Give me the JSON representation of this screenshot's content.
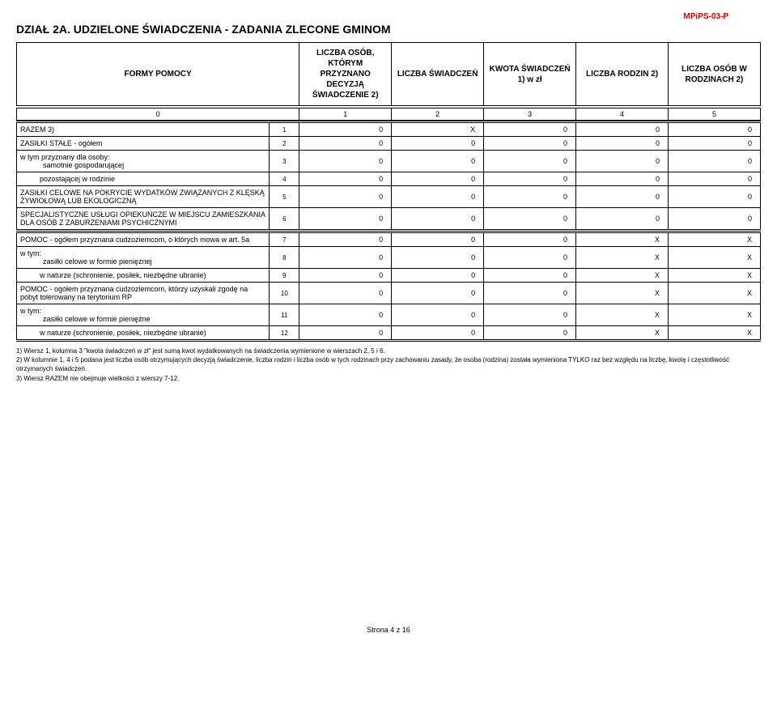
{
  "doc_id": "MPiPS-03-P",
  "section_title": "DZIAŁ 2A. UDZIELONE ŚWIADCZENIA - ZADANIA ZLECONE GMINOM",
  "header": {
    "col0": "FORMY POMOCY",
    "col1": "LICZBA OSÓB, KTÓRYM PRZYZNANO DECYZJĄ ŚWIADCZENIE 2)",
    "col2": "LICZBA ŚWIADCZEŃ",
    "col3": "KWOTA ŚWIADCZEŃ 1) w zł",
    "col4": "LICZBA RODZIN 2)",
    "col5": "LICZBA OSÓB W RODZINACH 2)"
  },
  "numrow": [
    "0",
    "1",
    "2",
    "3",
    "4",
    "5"
  ],
  "block1": [
    {
      "label": "RAZEM 3)",
      "n": "1",
      "v": [
        "0",
        "X",
        "0",
        "0",
        "0"
      ],
      "cls": ""
    },
    {
      "label": "ZASIŁKI STAŁE - ogółem",
      "n": "2",
      "v": [
        "0",
        "0",
        "0",
        "0",
        "0"
      ],
      "cls": ""
    },
    {
      "label": "w tym przyznany dla osoby:",
      "sublabel": "samotnie gospodarującej",
      "n": "3",
      "v": [
        "0",
        "0",
        "0",
        "0",
        "0"
      ],
      "cls": ""
    },
    {
      "label": "pozostającej w rodzinie",
      "n": "4",
      "v": [
        "0",
        "0",
        "0",
        "0",
        "0"
      ],
      "cls": "indent2"
    },
    {
      "label": "ZASIŁKI CELOWE NA POKRYCIE WYDATKÓW ZWIĄZANYCH Z KLĘSKĄ ŻYWIOŁOWĄ LUB EKOLOGICZNĄ",
      "n": "5",
      "v": [
        "0",
        "0",
        "0",
        "0",
        "0"
      ],
      "cls": ""
    },
    {
      "label": "SPECJALISTYCZNE USŁUGI OPIEKUŃCZE W MIEJSCU ZAMIESZKANIA DLA OSÓB Z ZABURZENIAMI PSYCHICZNYMI",
      "n": "6",
      "v": [
        "0",
        "0",
        "0",
        "0",
        "0"
      ],
      "cls": ""
    }
  ],
  "block2": [
    {
      "label": "POMOC - ogółem przyznana cudzoziemcom, o których mowa w art. 5a",
      "n": "7",
      "v": [
        "0",
        "0",
        "0",
        "X",
        "X"
      ],
      "cls": ""
    },
    {
      "label": "w tym:",
      "sublabel": "zasiłki celowe w formie pieniężnej",
      "n": "8",
      "v": [
        "0",
        "0",
        "0",
        "X",
        "X"
      ],
      "cls": ""
    },
    {
      "label": "w naturze (schronienie, posiłek, niezbędne ubranie)",
      "n": "9",
      "v": [
        "0",
        "0",
        "0",
        "X",
        "X"
      ],
      "cls": "indent2"
    },
    {
      "label": "POMOC - ogółem przyznana cudzoziemcom, którzy uzyskali zgodę na pobyt tolerowany na terytorium RP",
      "n": "10",
      "v": [
        "0",
        "0",
        "0",
        "X",
        "X"
      ],
      "cls": ""
    },
    {
      "label": "w tym:",
      "sublabel": "zasiłki celowe w formie pieniężne",
      "n": "11",
      "v": [
        "0",
        "0",
        "0",
        "X",
        "X"
      ],
      "cls": ""
    },
    {
      "label": "w naturze (schronienie, posiłek, niezbędne ubranie)",
      "n": "12",
      "v": [
        "0",
        "0",
        "0",
        "X",
        "X"
      ],
      "cls": "indent2"
    }
  ],
  "footnotes": [
    "1)  Wiersz 1, kolumna 3 \"kwota świadczeń w zł\" jest sumą kwot wydatkowanych na świadczenia wymienione w wierszach 2, 5 i 6.",
    "2)  W kolumnie 1, 4 i 5 podana jest liczba osób otrzymujących decyzją świadczenie, liczba rodzin i liczba osób w tych rodzinach przy zachowaniu zasady, że osoba (rodzina) została wymieniona TYLKO raz bez względu na liczbę, kwotę i częstotliwość otrzymanych świadczeń.",
    "3)  Wiersz RAZEM nie obejmuje wielkości z wierszy 7-12."
  ],
  "page_footer": "Strona 4 z 16",
  "col_widths": {
    "label": "34%",
    "num": "4%",
    "val": "12.4%"
  }
}
